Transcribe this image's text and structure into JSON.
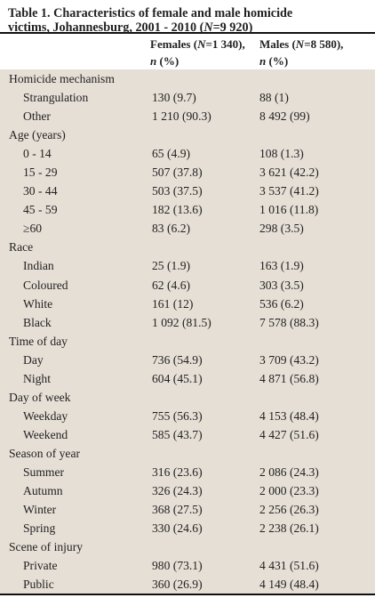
{
  "title": {
    "line1": "Table 1. Characteristics of female and male homicide",
    "line2_prefix": "victims, Johannesburg, 2001 - 2010 (",
    "line2_n": "N",
    "line2_suffix": "=9 920)"
  },
  "columns": {
    "females_prefix": "Females (",
    "females_n": "N",
    "females_suffix": "=1 340),",
    "males_prefix": "Males (",
    "males_n": "N",
    "males_suffix": "=8 580),",
    "unit_n": "n",
    "unit_pct": " (%)"
  },
  "rows": [
    {
      "type": "group",
      "label": "Homicide mechanism",
      "f": "",
      "m": ""
    },
    {
      "type": "sub",
      "label": "Strangulation",
      "f": "130 (9.7)",
      "m": "88 (1)"
    },
    {
      "type": "sub",
      "label": "Other",
      "f": "1 210 (90.3)",
      "m": "8 492 (99)"
    },
    {
      "type": "group",
      "label": "Age (years)",
      "f": "",
      "m": ""
    },
    {
      "type": "sub",
      "label": "0 - 14",
      "f": "65 (4.9)",
      "m": "108 (1.3)"
    },
    {
      "type": "sub",
      "label": "15 - 29",
      "f": "507 (37.8)",
      "m": "3 621 (42.2)"
    },
    {
      "type": "sub",
      "label": "30 - 44",
      "f": "503 (37.5)",
      "m": "3 537 (41.2)"
    },
    {
      "type": "sub",
      "label": "45 - 59",
      "f": "182 (13.6)",
      "m": "1 016 (11.8)"
    },
    {
      "type": "sub",
      "label": "≥60",
      "f": "83 (6.2)",
      "m": "298 (3.5)"
    },
    {
      "type": "group",
      "label": "Race",
      "f": "",
      "m": ""
    },
    {
      "type": "sub",
      "label": "Indian",
      "f": "25 (1.9)",
      "m": "163 (1.9)"
    },
    {
      "type": "sub",
      "label": "Coloured",
      "f": "62 (4.6)",
      "m": "303 (3.5)"
    },
    {
      "type": "sub",
      "label": "White",
      "f": "161 (12)",
      "m": "536 (6.2)"
    },
    {
      "type": "sub",
      "label": "Black",
      "f": "1 092 (81.5)",
      "m": "7 578 (88.3)"
    },
    {
      "type": "group",
      "label": "Time of day",
      "f": "",
      "m": ""
    },
    {
      "type": "sub",
      "label": "Day",
      "f": "736 (54.9)",
      "m": "3 709 (43.2)"
    },
    {
      "type": "sub",
      "label": "Night",
      "f": "604 (45.1)",
      "m": "4 871 (56.8)"
    },
    {
      "type": "group",
      "label": "Day of week",
      "f": "",
      "m": ""
    },
    {
      "type": "sub",
      "label": "Weekday",
      "f": "755 (56.3)",
      "m": "4 153 (48.4)"
    },
    {
      "type": "sub",
      "label": "Weekend",
      "f": "585 (43.7)",
      "m": "4 427 (51.6)"
    },
    {
      "type": "group",
      "label": "Season of year",
      "f": "",
      "m": ""
    },
    {
      "type": "sub",
      "label": "Summer",
      "f": "316 (23.6)",
      "m": "2 086 (24.3)"
    },
    {
      "type": "sub",
      "label": "Autumn",
      "f": "326 (24.3)",
      "m": "2 000 (23.3)"
    },
    {
      "type": "sub",
      "label": "Winter",
      "f": "368 (27.5)",
      "m": "2 256 (26.3)"
    },
    {
      "type": "sub",
      "label": "Spring",
      "f": "330 (24.6)",
      "m": "2 238 (26.1)"
    },
    {
      "type": "group",
      "label": "Scene of injury",
      "f": "",
      "m": ""
    },
    {
      "type": "sub",
      "label": "Private",
      "f": "980 (73.1)",
      "m": "4 431 (51.6)"
    },
    {
      "type": "sub",
      "label": "Public",
      "f": "360 (26.9)",
      "m": "4 149 (48.4)"
    }
  ]
}
